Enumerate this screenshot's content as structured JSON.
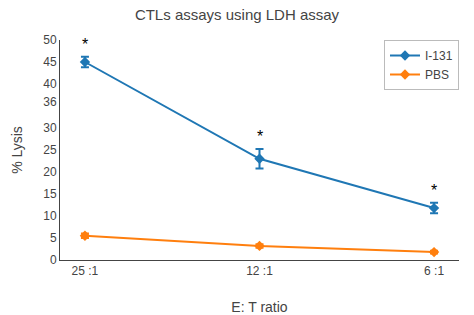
{
  "chart_data": {
    "type": "line",
    "title": "CTLs assays using LDH assay",
    "xlabel": "E: T ratio",
    "ylabel": "% Lysis",
    "categories": [
      "25 :1",
      "12 :1",
      "6 :1"
    ],
    "series": [
      {
        "name": "I-131",
        "values": [
          45.0,
          23.0,
          11.8
        ],
        "yerr": [
          1.2,
          2.2,
          1.2
        ],
        "marker": "diamond"
      },
      {
        "name": "PBS",
        "values": [
          5.5,
          3.2,
          1.8
        ],
        "yerr": [
          0.5,
          0.4,
          0.3
        ],
        "marker": "diamond"
      }
    ],
    "annotations": [
      {
        "text": "*",
        "series": "I-131",
        "category": "25 :1"
      },
      {
        "text": "*",
        "series": "I-131",
        "category": "12 :1"
      },
      {
        "text": "*",
        "series": "I-131",
        "category": "6 :1"
      }
    ],
    "ylim": [
      0,
      50
    ],
    "yticks": [
      0,
      5,
      10,
      15,
      20,
      25,
      30,
      36,
      40,
      45,
      50
    ],
    "grid": false,
    "legend": "upper right"
  }
}
